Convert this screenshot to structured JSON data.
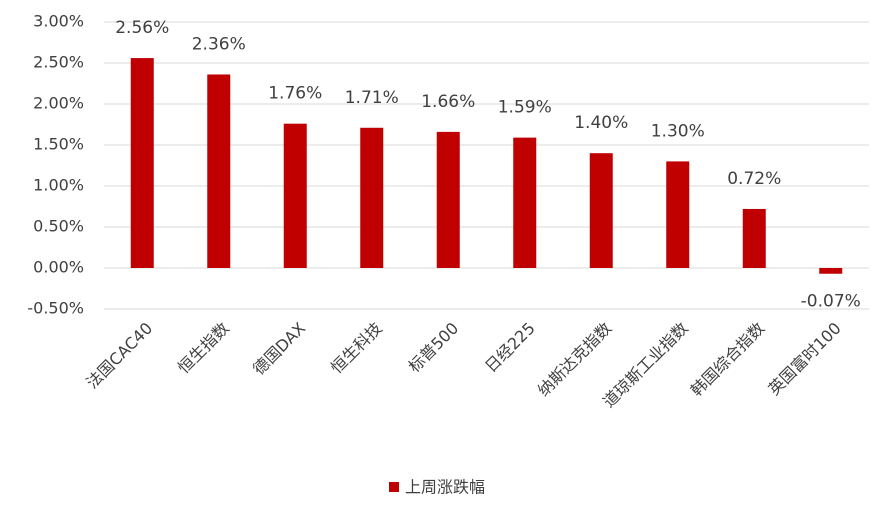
{
  "chart_data": {
    "type": "bar",
    "categories": [
      "法国CAC40",
      "恒生指数",
      "德国DAX",
      "恒生科技",
      "标普500",
      "日经225",
      "纳斯达克指数",
      "道琼斯工业指数",
      "韩国综合指数",
      "英国富时100"
    ],
    "series": [
      {
        "name": "上周涨跌幅",
        "color": "#c00000",
        "values": [
          2.56,
          2.36,
          1.76,
          1.71,
          1.66,
          1.59,
          1.4,
          1.3,
          0.72,
          -0.07
        ],
        "value_labels": [
          "2.56%",
          "2.36%",
          "1.76%",
          "1.71%",
          "1.66%",
          "1.59%",
          "1.40%",
          "1.30%",
          "0.72%",
          "-0.07%"
        ]
      }
    ],
    "ylim": [
      -0.5,
      3.0
    ],
    "yticks": [
      {
        "value": -0.5,
        "label": "-0.50%"
      },
      {
        "value": 0,
        "label": "0.00%"
      },
      {
        "value": 0.5,
        "label": "0.50%"
      },
      {
        "value": 1.0,
        "label": "1.00%"
      },
      {
        "value": 1.5,
        "label": "1.50%"
      },
      {
        "value": 2.0,
        "label": "2.00%"
      },
      {
        "value": 2.5,
        "label": "2.50%"
      },
      {
        "value": 3.0,
        "label": "3.00%"
      }
    ],
    "grid": true
  }
}
